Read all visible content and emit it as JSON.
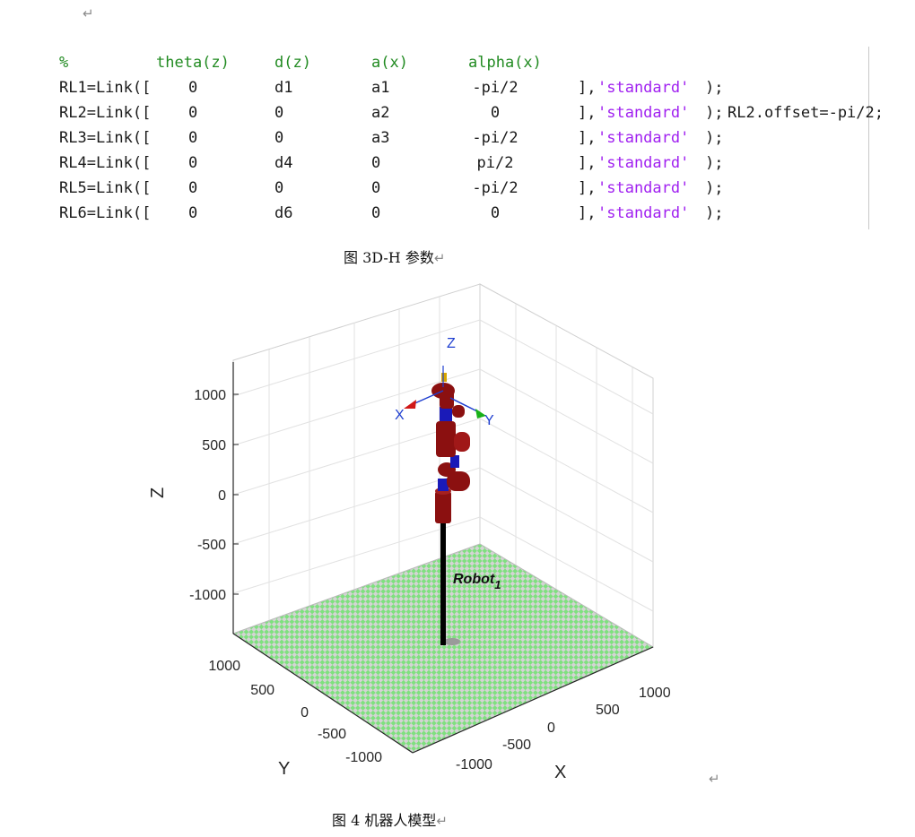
{
  "code": {
    "header": [
      "%",
      "theta(z)",
      "d(z)",
      "a(x)",
      "alpha(x)"
    ],
    "rows": [
      {
        "prefix": "RL1=Link([",
        "theta": "0",
        "d": "d1",
        "a": "a1",
        "alpha": "-pi/2",
        "close": "],",
        "str": "'standard'",
        "end": ");",
        "extra": ""
      },
      {
        "prefix": "RL2=Link([",
        "theta": "0",
        "d": "0",
        "a": "a2",
        "alpha": "0",
        "close": "],",
        "str": "'standard'",
        "end": ");",
        "extra": "RL2.offset=-pi/2;"
      },
      {
        "prefix": "RL3=Link([",
        "theta": "0",
        "d": "0",
        "a": "a3",
        "alpha": "-pi/2",
        "close": "],",
        "str": "'standard'",
        "end": ");",
        "extra": ""
      },
      {
        "prefix": "RL4=Link([",
        "theta": "0",
        "d": "d4",
        "a": "0",
        "alpha": "pi/2",
        "close": "],",
        "str": "'standard'",
        "end": ");",
        "extra": ""
      },
      {
        "prefix": "RL5=Link([",
        "theta": "0",
        "d": "0",
        "a": "0",
        "alpha": "-pi/2",
        "close": "],",
        "str": "'standard'",
        "end": ");",
        "extra": ""
      },
      {
        "prefix": "RL6=Link([",
        "theta": "0",
        "d": "d6",
        "a": "0",
        "alpha": "0",
        "close": "],",
        "str": "'standard'",
        "end": ");",
        "extra": ""
      }
    ]
  },
  "captions": {
    "fig3": "图 3D-H 参数",
    "fig4": "图 4 机器人模型"
  },
  "return_mark": "↵",
  "plot": {
    "z_label": "Z",
    "x_label": "X",
    "y_label": "Y",
    "z_ticks": [
      "1000",
      "500",
      "0",
      "-500",
      "-1000"
    ],
    "y_ticks": [
      "1000",
      "500",
      "0",
      "-500",
      "-1000"
    ],
    "x_ticks": [
      "1000",
      "500",
      "0",
      "-500",
      "-1000"
    ],
    "robot_name": "Robot",
    "robot_subscript": "1",
    "frame_x": "X",
    "frame_y": "Y",
    "frame_z": "Z",
    "colors": {
      "floor_green": "#7fe07f",
      "floor_gray": "#d4d4d4",
      "link_red": "#8b1010",
      "joint_blue": "#1a1ab8",
      "axis_label_blue": "#1f3fd0"
    }
  }
}
